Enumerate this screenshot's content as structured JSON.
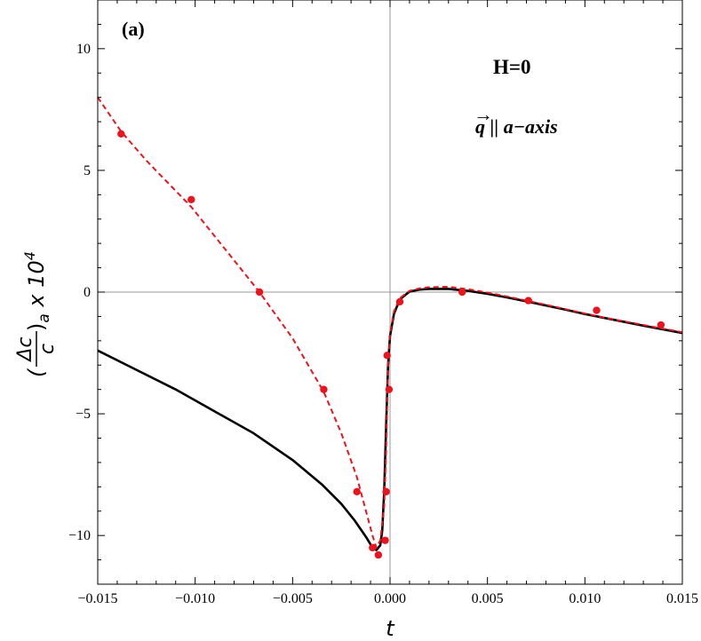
{
  "chart_data": {
    "type": "scatter",
    "panel_label": "(a)",
    "annotations": {
      "field": "H=0",
      "direction_vec": "q",
      "direction_rest": " || a−axis"
    },
    "xlabel": "t",
    "ylabel": {
      "numerator": "Δc",
      "denominator": "c",
      "open_paren": "(",
      "close_paren": ")",
      "subscript": "a",
      "factor": " x 10",
      "exponent": "4"
    },
    "xlim": [
      -0.015,
      0.015
    ],
    "ylim": [
      -12,
      12
    ],
    "x_ticks": [
      {
        "value": -0.015,
        "label": "−0.015"
      },
      {
        "value": -0.01,
        "label": "−0.010"
      },
      {
        "value": -0.005,
        "label": "−0.005"
      },
      {
        "value": 0,
        "label": "0.000"
      },
      {
        "value": 0.005,
        "label": "0.005"
      },
      {
        "value": 0.01,
        "label": "0.010"
      },
      {
        "value": 0.015,
        "label": "0.015"
      }
    ],
    "y_ticks": [
      {
        "value": -10,
        "label": "−10"
      },
      {
        "value": -5,
        "label": "−5"
      },
      {
        "value": 0,
        "label": "0"
      },
      {
        "value": 5,
        "label": "5"
      },
      {
        "value": 10,
        "label": "10"
      }
    ],
    "series": [
      {
        "kind": "points",
        "color": "#e8141e",
        "x": [
          -0.0138,
          -0.0102,
          -0.0067,
          -0.0034,
          -0.0017,
          -0.0009,
          -0.0006,
          -0.00025,
          -0.0002,
          -0.00015,
          -5e-05,
          0.0005,
          0.0037,
          0.0071,
          0.0106,
          0.0139
        ],
        "y": [
          6.5,
          3.8,
          0,
          -4,
          -8.2,
          -10.5,
          -10.8,
          -10.2,
          -8.2,
          -2.6,
          -4,
          -0.4,
          0,
          -0.35,
          -0.75,
          -1.35
        ]
      },
      {
        "kind": "dashed-line",
        "color": "#e8141e",
        "x": [
          -0.015,
          -0.0138,
          -0.0125,
          -0.0102,
          -0.009,
          -0.0067,
          -0.005,
          -0.0034,
          -0.0025,
          -0.0017,
          -0.0012,
          -0.0009,
          -0.0007,
          -0.0005,
          -0.0003,
          -0.0002,
          -0.0001,
          0,
          0.0002,
          0.0005,
          0.001,
          0.0015,
          0.002,
          0.003,
          0.004,
          0.005,
          0.006,
          0.007,
          0.008,
          0.009,
          0.01,
          0.011,
          0.012,
          0.013,
          0.014,
          0.015
        ],
        "y": [
          8,
          6.6,
          5.4,
          3.5,
          2.3,
          0,
          -1.9,
          -4.1,
          -5.8,
          -7.6,
          -9.1,
          -10,
          -10.5,
          -10.2,
          -8.8,
          -6.5,
          -3,
          -1.7,
          -0.8,
          -0.25,
          0.05,
          0.15,
          0.2,
          0.22,
          0.12,
          -0.02,
          -0.18,
          -0.35,
          -0.52,
          -0.7,
          -0.88,
          -1.05,
          -1.2,
          -1.35,
          -1.5,
          -1.65
        ]
      },
      {
        "kind": "solid-line",
        "color": "#000000",
        "x": [
          -0.015,
          -0.013,
          -0.011,
          -0.009,
          -0.007,
          -0.005,
          -0.0035,
          -0.0025,
          -0.0018,
          -0.0012,
          -0.0009,
          -0.0007,
          -0.0005,
          -0.0004,
          -0.0003,
          -0.0002,
          -0.0001,
          0,
          0.0002,
          0.0005,
          0.001,
          0.0015,
          0.002,
          0.003,
          0.004,
          0.005,
          0.006,
          0.007,
          0.008,
          0.009,
          0.01,
          0.011,
          0.012,
          0.013,
          0.014,
          0.015
        ],
        "y": [
          -2.4,
          -3.2,
          -4,
          -4.9,
          -5.8,
          -6.9,
          -7.9,
          -8.7,
          -9.4,
          -10.1,
          -10.5,
          -10.6,
          -10.4,
          -9.8,
          -8.2,
          -5.5,
          -3,
          -1.8,
          -0.9,
          -0.3,
          0.02,
          0.1,
          0.13,
          0.13,
          0.05,
          -0.07,
          -0.22,
          -0.38,
          -0.55,
          -0.72,
          -0.9,
          -1.06,
          -1.22,
          -1.38,
          -1.53,
          -1.68
        ]
      }
    ]
  }
}
